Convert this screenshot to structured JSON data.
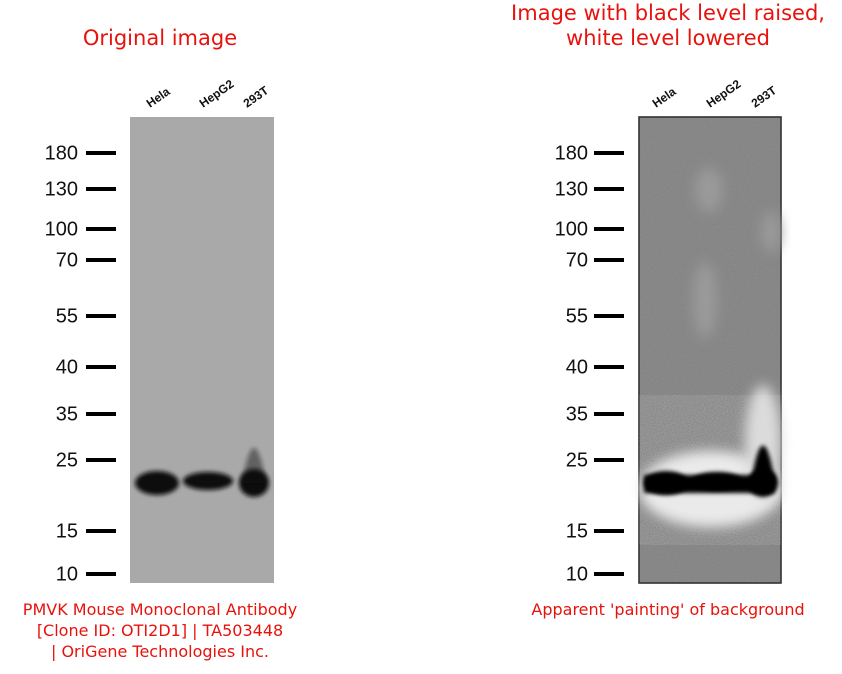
{
  "panels": [
    {
      "title_lines": [
        "Original image"
      ],
      "lanes": [
        "Hela",
        "HepG2",
        "293T"
      ],
      "markers": [
        "180",
        "130",
        "100",
        "70",
        "55",
        "40",
        "35",
        "25",
        "15",
        "10"
      ],
      "caption_lines": [
        "PMVK Mouse Monoclonal Antibody",
        "[Clone ID: OTI2D1] | TA503448",
        "| OriGene Technologies Inc."
      ]
    },
    {
      "title_lines": [
        "Image with black level raised,",
        "white level lowered"
      ],
      "lanes": [
        "Hela",
        "HepG2",
        "293T"
      ],
      "markers": [
        "180",
        "130",
        "100",
        "70",
        "55",
        "40",
        "35",
        "25",
        "15",
        "10"
      ],
      "caption_lines": [
        "Apparent 'painting' of background"
      ]
    }
  ]
}
